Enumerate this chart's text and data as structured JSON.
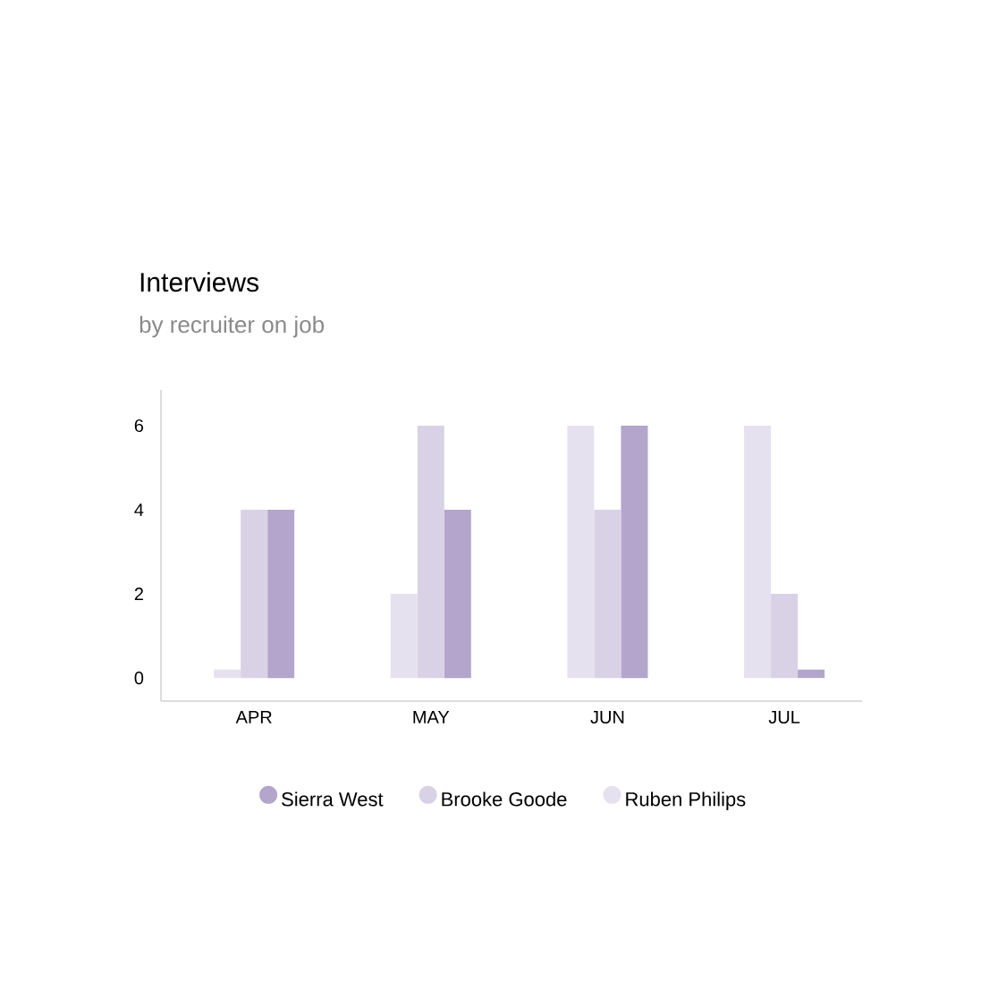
{
  "chart_data": {
    "type": "bar",
    "title": "Interviews",
    "subtitle": "by recruiter on job",
    "categories": [
      "APR",
      "MAY",
      "JUN",
      "JUL"
    ],
    "series": [
      {
        "name": "Sierra West",
        "color": "#b3a5cb",
        "values": [
          4,
          4,
          6,
          0.2
        ]
      },
      {
        "name": "Brooke Goode",
        "color": "#d9d2e6",
        "values": [
          4,
          6,
          4,
          2
        ]
      },
      {
        "name": "Ruben Philips",
        "color": "#e6e1ef",
        "values": [
          0.2,
          2,
          6,
          6
        ]
      }
    ],
    "ylim": [
      -0.55,
      6.85
    ],
    "yticks": [
      0,
      2,
      4,
      6
    ],
    "grid": false,
    "legend": "bottom"
  }
}
